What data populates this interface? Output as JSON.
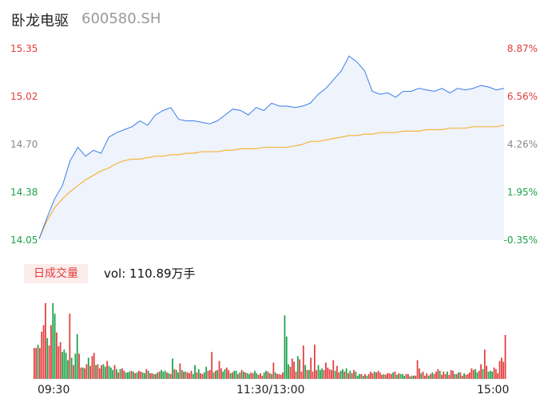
{
  "header": {
    "name": "卧龙电驱",
    "code": "600580.SH"
  },
  "colors": {
    "up": "#e23c3c",
    "down": "#1aa34a",
    "flat": "#999999",
    "price": "#3b7de8",
    "avg": "#f5b53a",
    "area": "#eef3fc"
  },
  "volume_panel": {
    "badge": "日成交量",
    "label": "vol: 110.89万手"
  },
  "chart_data": [
    {
      "type": "line",
      "title": "",
      "xlabel": "",
      "ylabel": "",
      "x_ticks": [
        "09:30",
        "11:30/13:00",
        "15:00"
      ],
      "y_ticks_left": [
        "15.35",
        "15.02",
        "14.70",
        "14.38",
        "14.05"
      ],
      "y_ticks_right": [
        "8.87%",
        "6.56%",
        "4.26%",
        "1.95%",
        "-0.35%"
      ],
      "ylim": [
        14.05,
        15.35
      ],
      "grid": false,
      "series": [
        {
          "values": [
            14.06,
            14.2,
            14.33,
            14.42,
            14.59,
            14.68,
            14.62,
            14.66,
            14.64,
            14.75,
            14.78,
            14.8,
            14.82,
            14.86,
            14.83,
            14.9,
            14.93,
            14.95,
            14.87,
            14.86,
            14.86,
            14.85,
            14.84,
            14.86,
            14.9,
            14.94,
            14.93,
            14.9,
            14.95,
            14.93,
            14.98,
            14.96,
            14.96,
            14.95,
            14.96,
            14.98,
            15.04,
            15.08,
            15.14,
            15.2,
            15.3,
            15.26,
            15.2,
            15.06,
            15.04,
            15.05,
            15.02,
            15.06,
            15.06,
            15.08,
            15.07,
            15.06,
            15.08,
            15.05,
            15.08,
            15.07,
            15.08,
            15.1,
            15.09,
            15.07,
            15.08
          ]
        },
        {
          "values": [
            14.06,
            14.18,
            14.27,
            14.33,
            14.38,
            14.42,
            14.46,
            14.49,
            14.52,
            14.54,
            14.57,
            14.59,
            14.6,
            14.6,
            14.61,
            14.62,
            14.62,
            14.63,
            14.63,
            14.64,
            14.64,
            14.65,
            14.65,
            14.65,
            14.66,
            14.66,
            14.67,
            14.67,
            14.67,
            14.68,
            14.68,
            14.68,
            14.68,
            14.69,
            14.7,
            14.72,
            14.72,
            14.73,
            14.74,
            14.75,
            14.76,
            14.76,
            14.77,
            14.77,
            14.78,
            14.78,
            14.78,
            14.79,
            14.79,
            14.79,
            14.8,
            14.8,
            14.8,
            14.81,
            14.81,
            14.81,
            14.82,
            14.82,
            14.82,
            14.82,
            14.83
          ]
        }
      ]
    },
    {
      "type": "bar",
      "title": "",
      "colors": [
        "r",
        "r",
        "g",
        "r",
        "r",
        "r",
        "r",
        "g",
        "r",
        "r",
        "g",
        "g",
        "r",
        "r",
        "r",
        "g",
        "g",
        "g",
        "g",
        "r",
        "g",
        "r",
        "g",
        "g",
        "r",
        "r",
        "g",
        "r",
        "r",
        "g",
        "r",
        "r",
        "r",
        "g",
        "r",
        "r",
        "r",
        "g",
        "g",
        "r",
        "g",
        "g",
        "g",
        "r",
        "g",
        "r",
        "g",
        "r",
        "r",
        "g",
        "g",
        "g",
        "r",
        "g",
        "r",
        "g",
        "r",
        "r",
        "g",
        "g",
        "r",
        "g",
        "r",
        "r",
        "g",
        "r",
        "g",
        "r",
        "g",
        "g",
        "g",
        "r",
        "g",
        "r",
        "g",
        "r",
        "g",
        "g",
        "r",
        "g",
        "r",
        "g",
        "r",
        "r",
        "r",
        "g",
        "g",
        "r",
        "g",
        "r",
        "r",
        "g",
        "g",
        "r",
        "r",
        "r",
        "g",
        "r",
        "g",
        "r",
        "r",
        "g",
        "g",
        "r",
        "r",
        "g",
        "r",
        "g",
        "g",
        "r",
        "g",
        "r",
        "g",
        "r",
        "g",
        "g",
        "r",
        "r",
        "g",
        "g",
        "r",
        "r",
        "r",
        "g",
        "g",
        "r",
        "r",
        "g",
        "r",
        "g",
        "r",
        "r",
        "r",
        "r",
        "g",
        "g",
        "g",
        "r",
        "r",
        "r",
        "r",
        "g",
        "r",
        "r",
        "r",
        "g",
        "r",
        "g",
        "r",
        "r",
        "r",
        "r",
        "g",
        "g",
        "g",
        "r",
        "r",
        "r",
        "r",
        "r",
        "r",
        "g",
        "r",
        "r",
        "g",
        "g",
        "r",
        "g",
        "r",
        "g",
        "r",
        "r",
        "g",
        "g",
        "g",
        "r",
        "g",
        "r",
        "g",
        "r",
        "r",
        "r",
        "g",
        "r",
        "r",
        "r",
        "r",
        "g",
        "r",
        "r",
        "r",
        "r",
        "g",
        "r",
        "g",
        "r",
        "g",
        "g",
        "g",
        "r",
        "r",
        "g",
        "r",
        "g",
        "r",
        "r",
        "r",
        "g",
        "r",
        "r",
        "r",
        "g",
        "r",
        "g",
        "r",
        "r",
        "r",
        "g",
        "r",
        "r",
        "r",
        "g",
        "r",
        "r",
        "r",
        "g",
        "r",
        "g",
        "r",
        "r",
        "g",
        "r",
        "r",
        "r",
        "r",
        "r",
        "g",
        "g",
        "r",
        "r",
        "g",
        "r",
        "r",
        "g",
        "g",
        "g",
        "r"
      ],
      "values": [
        38,
        38,
        42,
        38,
        58,
        66,
        93,
        50,
        41,
        66,
        93,
        80,
        57,
        40,
        45,
        33,
        36,
        32,
        23,
        80,
        26,
        17,
        31,
        55,
        31,
        14,
        14,
        13,
        18,
        26,
        16,
        28,
        32,
        17,
        18,
        13,
        17,
        18,
        15,
        22,
        16,
        14,
        11,
        17,
        12,
        8,
        12,
        13,
        10,
        8,
        8,
        9,
        10,
        9,
        7,
        8,
        10,
        9,
        8,
        7,
        12,
        10,
        7,
        7,
        6,
        6,
        8,
        9,
        11,
        9,
        10,
        8,
        7,
        6,
        25,
        12,
        11,
        8,
        19,
        11,
        9,
        9,
        8,
        7,
        10,
        6,
        17,
        8,
        12,
        7,
        6,
        8,
        15,
        10,
        11,
        33,
        8,
        10,
        11,
        22,
        13,
        9,
        12,
        14,
        11,
        7,
        8,
        10,
        10,
        6,
        8,
        11,
        9,
        8,
        7,
        6,
        8,
        7,
        10,
        7,
        5,
        7,
        4,
        8,
        10,
        9,
        7,
        6,
        20,
        8,
        6,
        6,
        5,
        8,
        78,
        52,
        18,
        15,
        25,
        21,
        9,
        28,
        24,
        9,
        41,
        17,
        11,
        11,
        26,
        9,
        42,
        11,
        17,
        11,
        13,
        11,
        20,
        14,
        12,
        11,
        23,
        10,
        16,
        8,
        10,
        12,
        9,
        13,
        7,
        10,
        7,
        11,
        9,
        4,
        6,
        6,
        4,
        6,
        4,
        6,
        9,
        7,
        9,
        8,
        10,
        8,
        5,
        6,
        5,
        7,
        7,
        6,
        8,
        9,
        5,
        7,
        6,
        6,
        4,
        6,
        6,
        3,
        4,
        4,
        4,
        23,
        13,
        7,
        9,
        4,
        7,
        4,
        6,
        8,
        6,
        9,
        12,
        10,
        5,
        9,
        6,
        9,
        5,
        11,
        10,
        6,
        6,
        8,
        8,
        4,
        7,
        5,
        6,
        8,
        13,
        11,
        12,
        8,
        10,
        18,
        12,
        36,
        16,
        9,
        10,
        9,
        14,
        12,
        7,
        22,
        26,
        21,
        54
      ]
    }
  ]
}
